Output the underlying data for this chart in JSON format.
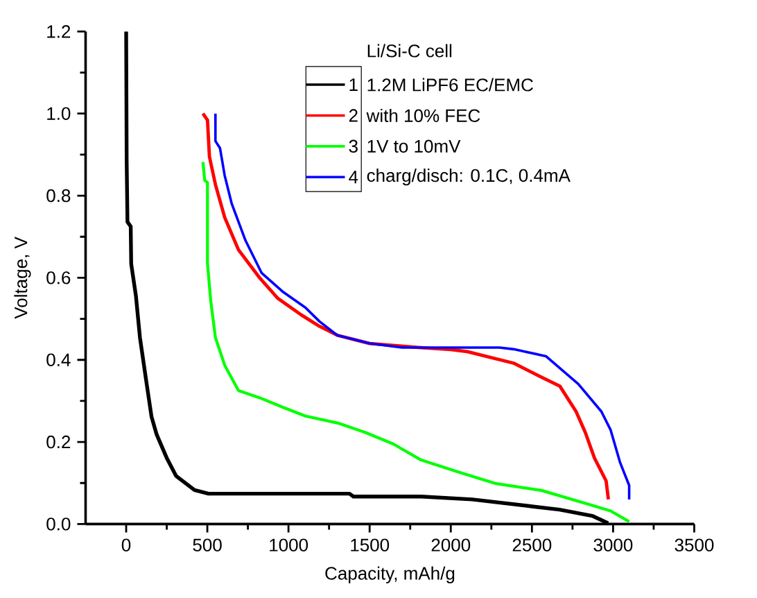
{
  "chart_data": {
    "type": "line",
    "xlabel": "Capacity, mAh/g",
    "ylabel": "Voltage, V",
    "legend_title": "Li/Si-C cell",
    "annotations": [
      "1.2M LiPF6 EC/EMC",
      "with 10% FEC",
      "1V to 10mV",
      "charg/disch: 0.1C, 0.4mA"
    ],
    "xlim": [
      -250,
      3500
    ],
    "xticks": [
      0,
      500,
      1000,
      1500,
      2000,
      2500,
      3000,
      3500
    ],
    "ylim": [
      0,
      1.2
    ],
    "yticks": [
      {
        "value": 0,
        "label": "0.0"
      },
      0.2,
      0.4,
      0.6,
      0.8,
      {
        "value": 1,
        "label": "1.0"
      },
      1.2
    ],
    "grid": false,
    "legend": "top",
    "marker": "none",
    "line_style": "solid",
    "series": [
      {
        "name": "1",
        "color": "#000000",
        "x": [
          0,
          3,
          8,
          28,
          31,
          60,
          85,
          122,
          156,
          188,
          250,
          308,
          421,
          507,
          1376,
          1400,
          1817,
          2131,
          2500,
          2670,
          2871,
          2970
        ],
        "values": [
          1.2,
          0.887,
          0.736,
          0.725,
          0.634,
          0.556,
          0.454,
          0.353,
          0.262,
          0.218,
          0.161,
          0.117,
          0.083,
          0.074,
          0.074,
          0.067,
          0.067,
          0.06,
          0.043,
          0.035,
          0.02,
          0.002
        ]
      },
      {
        "name": "2",
        "color": "#ff0000",
        "x": [
          473,
          501,
          513,
          550,
          607,
          692,
          820,
          934,
          1077,
          1190,
          1300,
          1500,
          1800,
          2000,
          2102,
          2387,
          2558,
          2672,
          2772,
          2829,
          2885,
          2957,
          2971
        ],
        "values": [
          1.0,
          0.984,
          0.895,
          0.827,
          0.747,
          0.668,
          0.601,
          0.55,
          0.51,
          0.482,
          0.46,
          0.44,
          0.43,
          0.425,
          0.42,
          0.392,
          0.358,
          0.336,
          0.274,
          0.223,
          0.161,
          0.105,
          0.06
        ]
      },
      {
        "name": "3",
        "color": "#00ff00",
        "x": [
          473,
          484,
          501,
          501,
          521,
          550,
          607,
          692,
          820,
          962,
          1105,
          1304,
          1475,
          1646,
          1817,
          2045,
          2273,
          2558,
          2843,
          2985,
          3099
        ],
        "values": [
          0.882,
          0.837,
          0.832,
          0.635,
          0.544,
          0.454,
          0.387,
          0.325,
          0.308,
          0.285,
          0.263,
          0.246,
          0.223,
          0.195,
          0.156,
          0.127,
          0.099,
          0.082,
          0.049,
          0.032,
          0.006
        ]
      },
      {
        "name": "4",
        "color": "#0000ff",
        "x": [
          550,
          550,
          578,
          607,
          650,
          735,
          834,
          962,
          1105,
          1190,
          1300,
          1500,
          1700,
          2000,
          2300,
          2387,
          2586,
          2786,
          2928,
          2985,
          3043,
          3099,
          3099
        ],
        "values": [
          1.0,
          0.933,
          0.916,
          0.849,
          0.781,
          0.691,
          0.612,
          0.567,
          0.527,
          0.494,
          0.46,
          0.44,
          0.43,
          0.43,
          0.43,
          0.426,
          0.409,
          0.341,
          0.274,
          0.229,
          0.15,
          0.094,
          0.06
        ]
      }
    ]
  }
}
